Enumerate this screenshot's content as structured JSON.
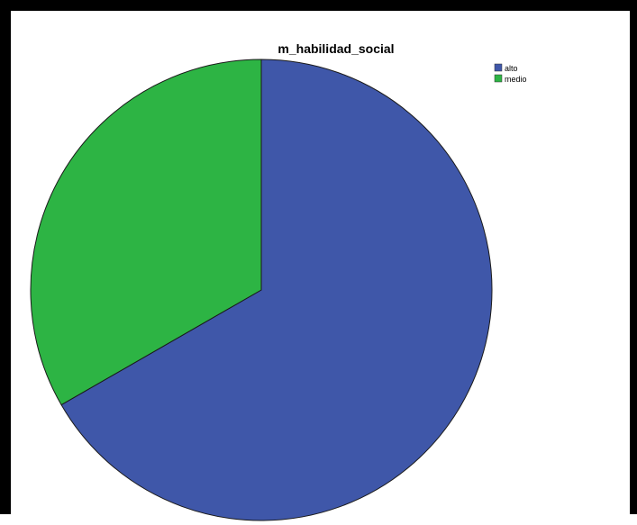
{
  "chart_data": {
    "type": "pie",
    "title": "m_habilidad_social",
    "categories": [
      "alto",
      "medio"
    ],
    "values": [
      66.7,
      33.3
    ],
    "colors": [
      "#3F57A9",
      "#2DB444"
    ],
    "start_angle_deg": 0,
    "direction": "clockwise",
    "legend_position": "top-right"
  }
}
